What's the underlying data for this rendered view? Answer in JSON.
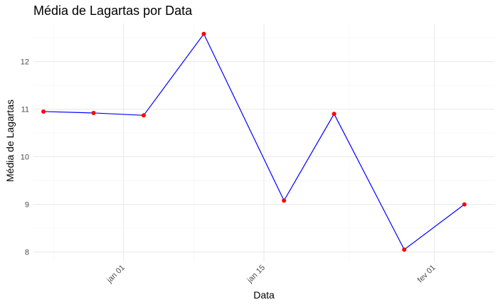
{
  "chart_data": {
    "type": "line",
    "title": "Média de Lagartas por Data",
    "xlabel": "Data",
    "ylabel": "Média de Lagartas",
    "x_tick_labels": [
      "jan 01",
      "jan 15",
      "fev 01"
    ],
    "x_ticks": [
      "2024-01-01",
      "2024-01-15",
      "2024-02-01"
    ],
    "y_tick_labels": [
      "8",
      "9",
      "10",
      "11",
      "12"
    ],
    "y_ticks": [
      8,
      9,
      10,
      11,
      12
    ],
    "xlim": [
      "2023-12-23",
      "2024-02-07"
    ],
    "ylim": [
      7.8,
      12.8
    ],
    "series": [
      {
        "x": [
          "2023-12-24",
          "2023-12-29",
          "2024-01-03",
          "2024-01-09",
          "2024-01-17",
          "2024-01-22",
          "2024-01-29",
          "2024-02-04"
        ],
        "values": [
          10.95,
          10.92,
          10.87,
          12.58,
          9.08,
          10.9,
          8.05,
          9.0
        ],
        "line_color": "#0000ff",
        "point_color": "#ff0000"
      }
    ],
    "grid": true,
    "legend": "none"
  }
}
